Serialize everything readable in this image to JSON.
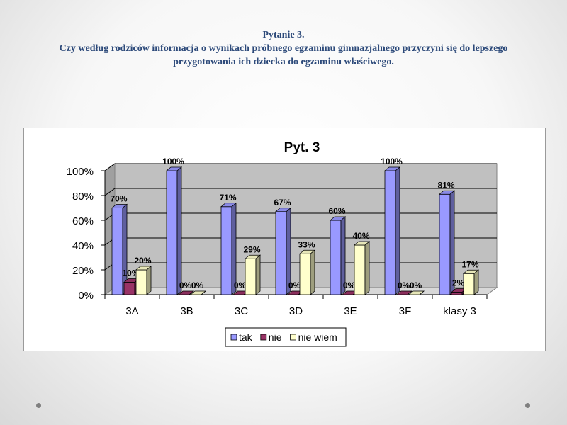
{
  "slide": {
    "title_line1": "Pytanie 3.",
    "title_line2": "Czy  według rodziców informacja o wynikach próbnego egzaminu gimnazjalnego przyczyni się do lepszego",
    "title_line3": "przygotowania ich dziecka do egzaminu właściwego."
  },
  "chart_data": {
    "type": "bar",
    "title": "Pyt. 3",
    "categories": [
      "3A",
      "3B",
      "3C",
      "3D",
      "3E",
      "3F",
      "klasy 3"
    ],
    "series": [
      {
        "name": "tak",
        "values": [
          70,
          100,
          71,
          67,
          60,
          100,
          81
        ],
        "labels": [
          "70%",
          "100%",
          "71%",
          "67%",
          "60%",
          "100%",
          "81%"
        ],
        "color": "#9999ff"
      },
      {
        "name": "nie",
        "values": [
          10,
          0,
          0,
          0,
          0,
          0,
          2
        ],
        "labels": [
          "10%",
          "0%",
          "0%",
          "0%",
          "0%",
          "0%",
          "2%"
        ],
        "color": "#993366"
      },
      {
        "name": "nie wiem",
        "values": [
          20,
          0,
          29,
          33,
          40,
          0,
          17
        ],
        "labels": [
          "20%",
          "0%",
          "29%",
          "33%",
          "40%",
          "0%",
          "17%"
        ],
        "color": "#ffffcc"
      }
    ],
    "y_ticks": [
      "0%",
      "20%",
      "40%",
      "60%",
      "80%",
      "100%"
    ],
    "ylim": [
      0,
      100
    ],
    "three_d": true,
    "grid": true,
    "legend_position": "bottom"
  }
}
